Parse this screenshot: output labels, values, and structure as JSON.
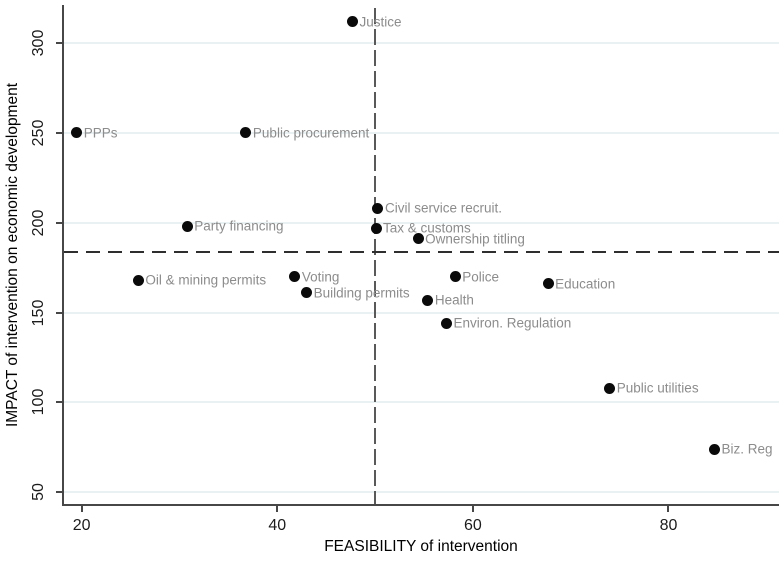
{
  "chart_data": {
    "type": "scatter",
    "title": "",
    "xlabel": "FEASIBILITY of intervention",
    "ylabel": "IMPACT of intervention on economic development",
    "xlim": [
      18.2,
      91.3
    ],
    "ylim": [
      42.9,
      321.2
    ],
    "x_ticks": [
      20,
      40,
      60,
      80
    ],
    "y_ticks": [
      50,
      100,
      150,
      200,
      250,
      300
    ],
    "grid": "horizontal-only",
    "legend": "none",
    "reference_lines": [
      {
        "orientation": "vertical",
        "x": 50,
        "style": "dashed"
      },
      {
        "orientation": "horizontal",
        "y": 183.5,
        "style": "dashed"
      }
    ],
    "points": [
      {
        "label": "Justice",
        "x": 47.7,
        "y": 312
      },
      {
        "label": "PPPs",
        "x": 19.5,
        "y": 250
      },
      {
        "label": "Public procurement",
        "x": 36.8,
        "y": 250
      },
      {
        "label": "Civil service recruit.",
        "x": 50.3,
        "y": 208
      },
      {
        "label": "Party financing",
        "x": 30.8,
        "y": 198
      },
      {
        "label": "Tax & customs",
        "x": 50.1,
        "y": 197
      },
      {
        "label": "Ownership titling",
        "x": 54.4,
        "y": 191
      },
      {
        "label": "Voting",
        "x": 41.8,
        "y": 170
      },
      {
        "label": "Police",
        "x": 58.2,
        "y": 170
      },
      {
        "label": "Oil & mining permits",
        "x": 25.8,
        "y": 168
      },
      {
        "label": "Education",
        "x": 67.7,
        "y": 166
      },
      {
        "label": "Building permits",
        "x": 43.0,
        "y": 161
      },
      {
        "label": "Health",
        "x": 55.4,
        "y": 157
      },
      {
        "label": "Environ. Regulation",
        "x": 57.3,
        "y": 144
      },
      {
        "label": "Public utilities",
        "x": 74.0,
        "y": 108
      },
      {
        "label": "Biz. Reg",
        "x": 84.7,
        "y": 74
      }
    ],
    "colors": {
      "point": "#0a0a0a",
      "point_label": "#8c8c8c",
      "gridline": "#eaf1f3",
      "axis": "#474747",
      "tick_label": "#1c1c1c",
      "ref_line_vertical": "#595959",
      "ref_line_horizontal": "#2e2e2e",
      "background": "#ffffff"
    }
  }
}
